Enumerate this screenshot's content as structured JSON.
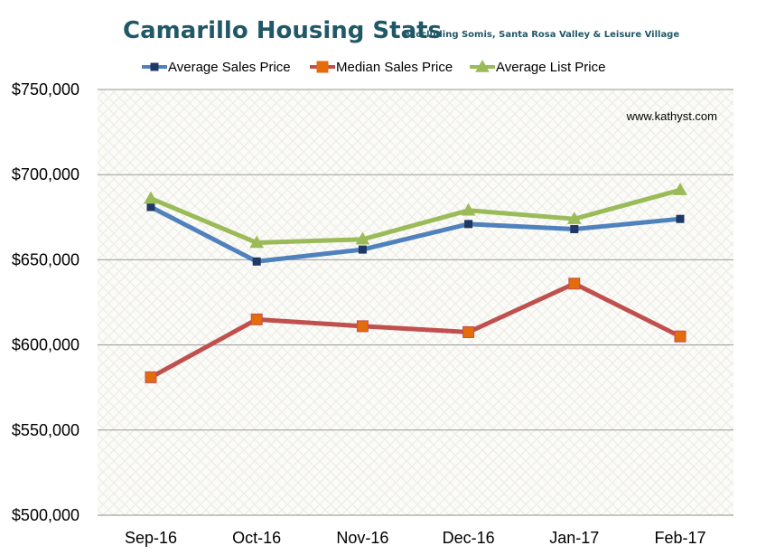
{
  "chart_data": {
    "type": "line",
    "title": "Camarillo Housing Stats",
    "subtitle": "exccluding Somis, Santa Rosa Valley & Leisure Village",
    "watermark": "www.kathyst.com",
    "categories": [
      "Sep-16",
      "Oct-16",
      "Nov-16",
      "Dec-16",
      "Jan-17",
      "Feb-17"
    ],
    "y_ticks": [
      "$500,000",
      "$550,000",
      "$600,000",
      "$650,000",
      "$700,000",
      "$750,000"
    ],
    "ylim": [
      500000,
      750000
    ],
    "grid": true,
    "legend_position": "top",
    "series": [
      {
        "name": "Average Sales Price",
        "color": "#4F81BD",
        "marker_color": "#1F3864",
        "marker": "square",
        "values": [
          681000,
          649000,
          656000,
          671000,
          668000,
          674000
        ]
      },
      {
        "name": "Median Sales Price",
        "color": "#C0504D",
        "marker_color": "#E46C0A",
        "marker": "square",
        "values": [
          581000,
          615000,
          611000,
          607500,
          636000,
          605000
        ]
      },
      {
        "name": "Average List Price",
        "color": "#9BBB59",
        "marker_color": "#9BBB59",
        "marker": "triangle",
        "values": [
          686000,
          660000,
          662000,
          679000,
          674000,
          691000
        ]
      }
    ]
  }
}
